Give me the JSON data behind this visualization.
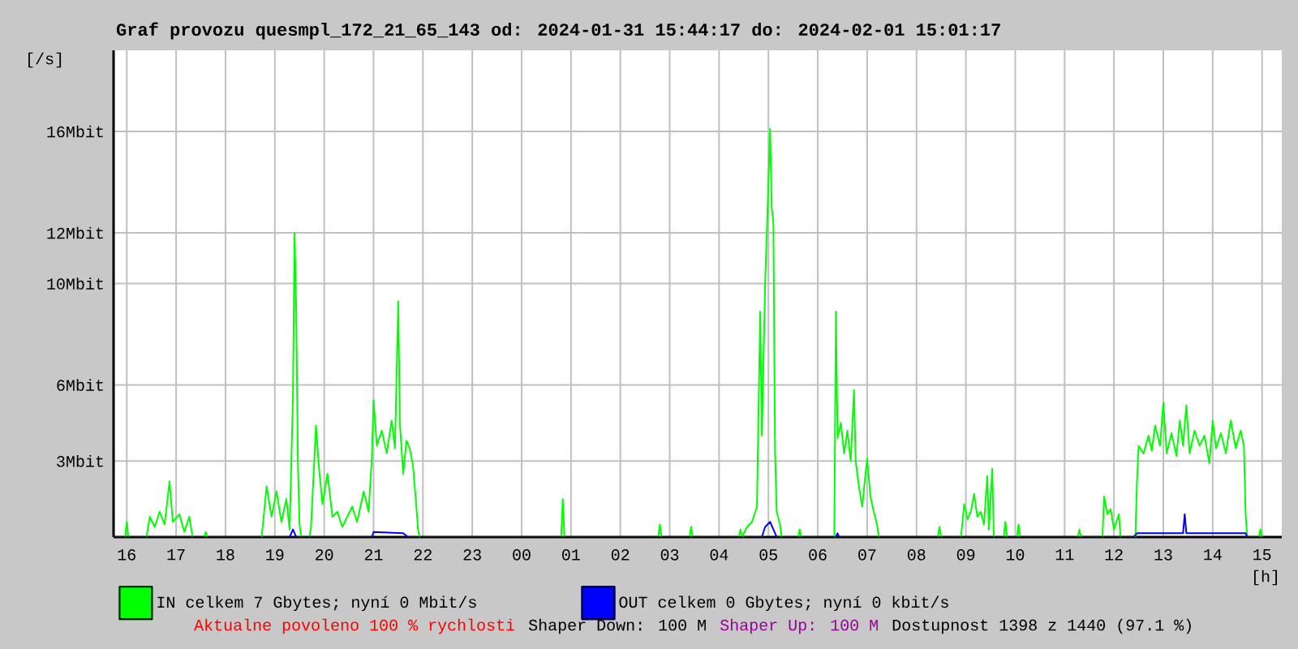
{
  "chart_data": {
    "type": "line",
    "title": "Graf provozu quesmpl_172_21_65_143 od: 2024-01-31 15:44:17 do: 2024-02-01 15:01:17",
    "ylabel": "[/s]",
    "xlabel": "[h]",
    "xlim": [
      "2024-01-31T15:44",
      "2024-02-01T15:24"
    ],
    "ylim": [
      0,
      19.2
    ],
    "xticks": [
      {
        "value": "2024-01-31T16:00",
        "label": "16"
      },
      {
        "value": "2024-01-31T17:00",
        "label": "17"
      },
      {
        "value": "2024-01-31T18:00",
        "label": "18"
      },
      {
        "value": "2024-01-31T19:00",
        "label": "19"
      },
      {
        "value": "2024-01-31T20:00",
        "label": "20"
      },
      {
        "value": "2024-01-31T21:00",
        "label": "21"
      },
      {
        "value": "2024-01-31T22:00",
        "label": "22"
      },
      {
        "value": "2024-01-31T23:00",
        "label": "23"
      },
      {
        "value": "2024-02-01T00:00",
        "label": "00"
      },
      {
        "value": "2024-02-01T01:00",
        "label": "01"
      },
      {
        "value": "2024-02-01T02:00",
        "label": "02"
      },
      {
        "value": "2024-02-01T03:00",
        "label": "03"
      },
      {
        "value": "2024-02-01T04:00",
        "label": "04"
      },
      {
        "value": "2024-02-01T05:00",
        "label": "05"
      },
      {
        "value": "2024-02-01T06:00",
        "label": "06"
      },
      {
        "value": "2024-02-01T07:00",
        "label": "07"
      },
      {
        "value": "2024-02-01T08:00",
        "label": "08"
      },
      {
        "value": "2024-02-01T09:00",
        "label": "09"
      },
      {
        "value": "2024-02-01T10:00",
        "label": "10"
      },
      {
        "value": "2024-02-01T11:00",
        "label": "11"
      },
      {
        "value": "2024-02-01T12:00",
        "label": "12"
      },
      {
        "value": "2024-02-01T13:00",
        "label": "13"
      },
      {
        "value": "2024-02-01T14:00",
        "label": "14"
      },
      {
        "value": "2024-02-01T15:00",
        "label": "15"
      }
    ],
    "yticks": [
      {
        "value": 3,
        "label": "3Mbit"
      },
      {
        "value": 6,
        "label": "6Mbit"
      },
      {
        "value": 10,
        "label": "10Mbit"
      },
      {
        "value": 12,
        "label": "12Mbit"
      },
      {
        "value": 16,
        "label": "16Mbit"
      }
    ],
    "grid": true,
    "legend": "bottom",
    "line_style": "solid",
    "series": [
      {
        "name": "IN celkem 7 Gbytes; nyní 0 Mbit/s",
        "color": "#00ff00",
        "x": [
          "2024-01-31T15:44",
          "2024-01-31T15:58",
          "2024-01-31T16:00",
          "2024-01-31T16:02",
          "2024-01-31T16:24",
          "2024-01-31T16:28",
          "2024-01-31T16:34",
          "2024-01-31T16:40",
          "2024-01-31T16:46",
          "2024-01-31T16:52",
          "2024-01-31T16:56",
          "2024-01-31T17:04",
          "2024-01-31T17:10",
          "2024-01-31T17:16",
          "2024-01-31T17:20",
          "2024-01-31T17:34",
          "2024-01-31T17:36",
          "2024-01-31T17:38",
          "2024-01-31T18:44",
          "2024-01-31T18:50",
          "2024-01-31T18:56",
          "2024-01-31T19:02",
          "2024-01-31T19:08",
          "2024-01-31T19:14",
          "2024-01-31T19:18",
          "2024-01-31T19:22",
          "2024-01-31T19:24",
          "2024-01-31T19:26",
          "2024-01-31T19:28",
          "2024-01-31T19:30",
          "2024-01-31T19:32",
          "2024-01-31T19:42",
          "2024-01-31T19:44",
          "2024-01-31T19:50",
          "2024-01-31T19:54",
          "2024-01-31T19:58",
          "2024-01-31T20:04",
          "2024-01-31T20:10",
          "2024-01-31T20:16",
          "2024-01-31T20:22",
          "2024-01-31T20:28",
          "2024-01-31T20:34",
          "2024-01-31T20:40",
          "2024-01-31T20:48",
          "2024-01-31T20:54",
          "2024-01-31T20:58",
          "2024-01-31T21:00",
          "2024-01-31T21:04",
          "2024-01-31T21:10",
          "2024-01-31T21:16",
          "2024-01-31T21:22",
          "2024-01-31T21:26",
          "2024-01-31T21:30",
          "2024-01-31T21:32",
          "2024-01-31T21:36",
          "2024-01-31T21:40",
          "2024-01-31T21:44",
          "2024-01-31T21:48",
          "2024-01-31T21:52",
          "2024-01-31T21:54",
          "2024-01-31T21:56",
          "2024-02-01T00:48",
          "2024-02-01T00:50",
          "2024-02-01T00:52",
          "2024-02-01T02:46",
          "2024-02-01T02:48",
          "2024-02-01T02:50",
          "2024-02-01T03:24",
          "2024-02-01T03:26",
          "2024-02-01T03:28",
          "2024-02-01T04:24",
          "2024-02-01T04:26",
          "2024-02-01T04:28",
          "2024-02-01T04:34",
          "2024-02-01T04:40",
          "2024-02-01T04:46",
          "2024-02-01T04:50",
          "2024-02-01T04:52",
          "2024-02-01T04:56",
          "2024-02-01T05:00",
          "2024-02-01T05:02",
          "2024-02-01T05:04",
          "2024-02-01T05:06",
          "2024-02-01T05:08",
          "2024-02-01T05:10",
          "2024-02-01T05:14",
          "2024-02-01T05:16",
          "2024-02-01T05:36",
          "2024-02-01T05:38",
          "2024-02-01T05:40",
          "2024-02-01T06:20",
          "2024-02-01T06:22",
          "2024-02-01T06:24",
          "2024-02-01T06:28",
          "2024-02-01T06:32",
          "2024-02-01T06:36",
          "2024-02-01T06:40",
          "2024-02-01T06:44",
          "2024-02-01T06:46",
          "2024-02-01T06:50",
          "2024-02-01T06:54",
          "2024-02-01T06:58",
          "2024-02-01T07:00",
          "2024-02-01T07:04",
          "2024-02-01T07:08",
          "2024-02-01T07:12",
          "2024-02-01T07:14",
          "2024-02-01T08:26",
          "2024-02-01T08:28",
          "2024-02-01T08:30",
          "2024-02-01T08:54",
          "2024-02-01T08:58",
          "2024-02-01T09:02",
          "2024-02-01T09:06",
          "2024-02-01T09:10",
          "2024-02-01T09:14",
          "2024-02-01T09:18",
          "2024-02-01T09:22",
          "2024-02-01T09:26",
          "2024-02-01T09:28",
          "2024-02-01T09:32",
          "2024-02-01T09:34",
          "2024-02-01T09:46",
          "2024-02-01T09:48",
          "2024-02-01T09:50",
          "2024-02-01T10:02",
          "2024-02-01T10:04",
          "2024-02-01T10:06",
          "2024-02-01T11:16",
          "2024-02-01T11:18",
          "2024-02-01T11:20",
          "2024-02-01T11:46",
          "2024-02-01T11:48",
          "2024-02-01T11:52",
          "2024-02-01T11:56",
          "2024-02-01T12:00",
          "2024-02-01T12:06",
          "2024-02-01T12:08",
          "2024-02-01T12:26",
          "2024-02-01T12:28",
          "2024-02-01T12:30",
          "2024-02-01T12:36",
          "2024-02-01T12:42",
          "2024-02-01T12:46",
          "2024-02-01T12:50",
          "2024-02-01T12:56",
          "2024-02-01T13:00",
          "2024-02-01T13:04",
          "2024-02-01T13:10",
          "2024-02-01T13:16",
          "2024-02-01T13:20",
          "2024-02-01T13:24",
          "2024-02-01T13:28",
          "2024-02-01T13:32",
          "2024-02-01T13:38",
          "2024-02-01T13:44",
          "2024-02-01T13:50",
          "2024-02-01T13:56",
          "2024-02-01T14:00",
          "2024-02-01T14:04",
          "2024-02-01T14:10",
          "2024-02-01T14:16",
          "2024-02-01T14:22",
          "2024-02-01T14:28",
          "2024-02-01T14:34",
          "2024-02-01T14:38",
          "2024-02-01T14:40",
          "2024-02-01T14:42",
          "2024-02-01T14:56",
          "2024-02-01T14:58",
          "2024-02-01T15:00"
        ],
        "values": [
          0,
          0,
          0.6,
          0,
          0,
          0.8,
          0.4,
          1.0,
          0.5,
          2.2,
          0.6,
          0.9,
          0.2,
          0.8,
          0,
          0,
          0.2,
          0,
          0,
          2.0,
          0.8,
          1.8,
          0.6,
          1.5,
          0.3,
          5.5,
          12.0,
          9.0,
          3.0,
          0.5,
          0,
          0,
          0.4,
          4.4,
          2.6,
          1.3,
          2.5,
          0.8,
          1.0,
          0.4,
          0.8,
          1.2,
          0.6,
          1.8,
          1.0,
          3.2,
          5.4,
          3.6,
          4.2,
          3.3,
          4.6,
          3.5,
          9.3,
          4.5,
          2.5,
          3.8,
          3.5,
          2.8,
          1.2,
          0.3,
          0,
          0,
          1.5,
          0,
          0,
          0.5,
          0,
          0,
          0.4,
          0,
          0,
          0.3,
          0,
          0.4,
          0.6,
          1.2,
          8.9,
          4.0,
          10.0,
          14.0,
          16.1,
          13.0,
          12.4,
          3.5,
          1.0,
          0.5,
          0,
          0,
          0.3,
          0,
          0,
          8.9,
          3.9,
          4.5,
          3.3,
          4.2,
          3.0,
          5.8,
          3.0,
          2.0,
          1.2,
          2.5,
          3.1,
          1.6,
          1.0,
          0.5,
          0,
          0,
          0.4,
          0,
          0,
          1.3,
          0.7,
          1.0,
          1.7,
          0.8,
          1.0,
          0.5,
          2.4,
          0.3,
          2.7,
          0,
          0,
          0.6,
          0,
          0,
          0.5,
          0,
          0,
          0.3,
          0,
          0,
          1.6,
          0.9,
          1.1,
          0.3,
          0.9,
          0,
          0,
          2.2,
          3.6,
          3.3,
          4.0,
          3.4,
          4.4,
          3.6,
          5.3,
          3.3,
          4.1,
          3.2,
          4.6,
          3.6,
          5.2,
          3.3,
          4.2,
          3.6,
          4.0,
          2.9,
          4.6,
          3.5,
          4.1,
          3.3,
          4.6,
          3.5,
          4.2,
          3.6,
          0.9,
          0,
          0,
          0.3,
          0
        ]
      },
      {
        "name": "OUT celkem 0 Gbytes; nyní 0 kbit/s",
        "color": "#0000ff",
        "x": [
          "2024-01-31T15:44",
          "2024-01-31T19:18",
          "2024-01-31T19:22",
          "2024-01-31T19:26",
          "2024-01-31T20:58",
          "2024-01-31T21:00",
          "2024-01-31T21:36",
          "2024-01-31T21:42",
          "2024-02-01T04:52",
          "2024-02-01T04:56",
          "2024-02-01T05:02",
          "2024-02-01T05:06",
          "2024-02-01T05:10",
          "2024-02-01T06:22",
          "2024-02-01T06:24",
          "2024-02-01T06:26",
          "2024-02-01T12:24",
          "2024-02-01T12:28",
          "2024-02-01T13:24",
          "2024-02-01T13:26",
          "2024-02-01T13:28",
          "2024-02-01T14:40",
          "2024-02-01T14:42",
          "2024-02-01T15:00"
        ],
        "values": [
          0,
          0,
          0.3,
          0,
          0,
          0.2,
          0.15,
          0,
          0,
          0.4,
          0.6,
          0.3,
          0,
          0,
          0.15,
          0,
          0,
          0.15,
          0.15,
          0.9,
          0.15,
          0.15,
          0,
          0
        ]
      }
    ],
    "annotations": [
      "Aktualne povoleno 100 % rychlosti",
      "Shaper Down: 100 M",
      "Shaper Up: 100 M",
      "Dostupnost 1398 z 1440 (97.1 %)"
    ]
  }
}
